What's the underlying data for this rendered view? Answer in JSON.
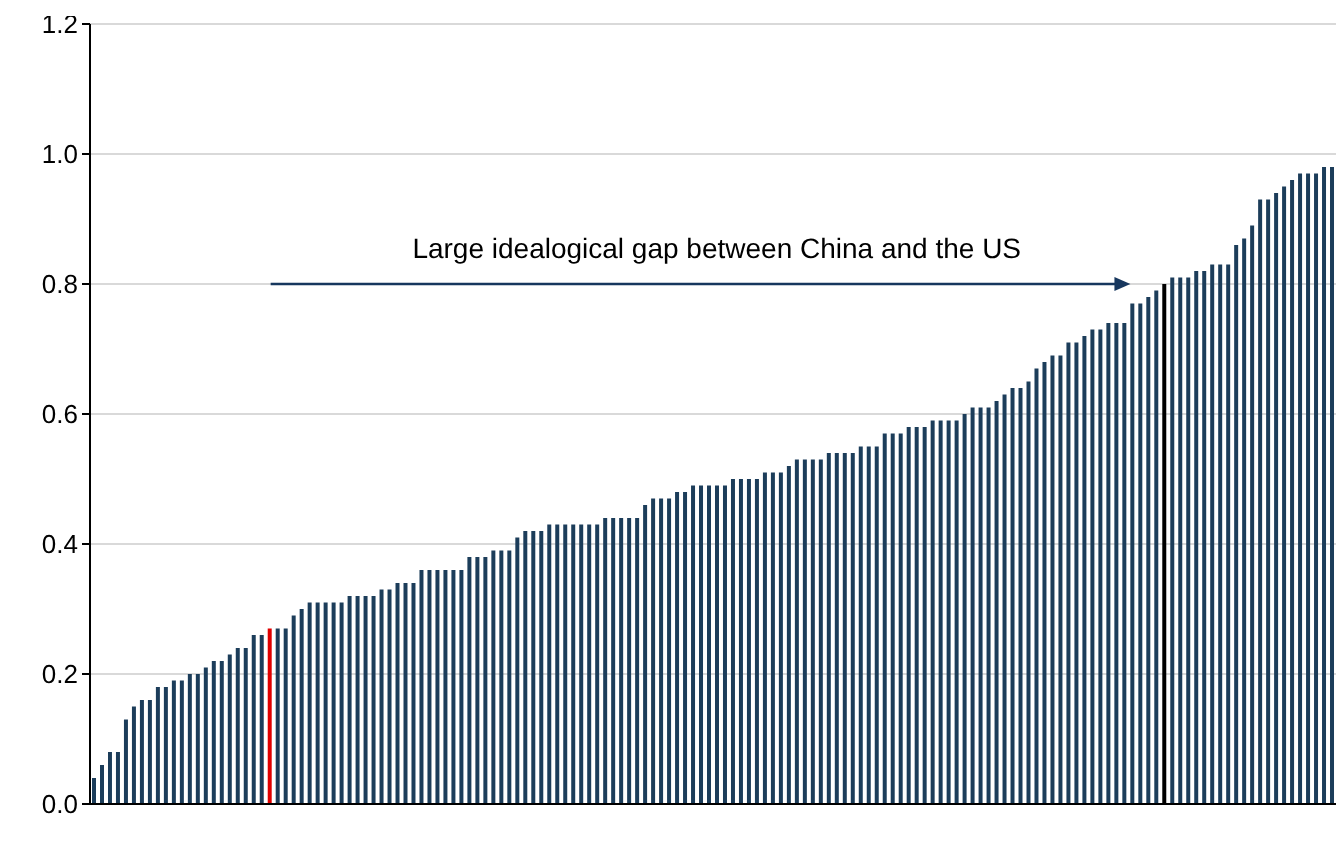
{
  "chart_data": {
    "type": "bar",
    "categories": [
      null,
      null,
      null,
      null,
      null,
      null,
      null,
      null,
      null,
      null,
      null,
      null,
      null,
      null,
      null,
      null,
      null,
      null,
      null,
      null,
      null,
      null,
      null,
      null,
      null,
      null,
      null,
      null,
      null,
      null,
      null,
      null,
      null,
      null,
      null,
      null,
      null,
      null,
      null,
      null,
      null,
      null,
      null,
      null,
      null,
      null,
      null,
      null,
      null,
      null,
      null,
      null,
      null,
      null,
      null,
      null,
      null,
      null,
      null,
      null,
      null,
      null,
      null,
      null,
      null,
      null,
      null,
      null,
      null,
      null,
      null,
      null,
      null,
      null,
      null,
      null,
      null,
      null,
      null,
      null,
      null,
      null,
      null,
      null,
      null,
      null,
      null,
      null,
      null,
      null,
      null,
      null,
      null,
      null,
      null,
      null,
      null,
      null,
      null,
      null,
      null,
      null,
      null,
      null,
      null,
      null,
      null,
      null,
      null,
      null,
      null,
      null,
      null,
      null,
      null,
      null,
      null,
      null,
      null,
      null,
      null,
      null,
      null,
      null,
      null,
      null,
      null,
      null,
      null,
      null,
      null,
      null,
      null,
      null,
      null,
      null,
      null,
      null,
      null,
      null,
      null,
      null,
      null,
      null,
      null,
      null,
      null,
      null,
      null,
      null,
      null,
      null,
      null,
      null,
      null,
      null
    ],
    "values": [
      0.04,
      0.06,
      0.08,
      0.08,
      0.13,
      0.15,
      0.16,
      0.16,
      0.18,
      0.18,
      0.19,
      0.19,
      0.2,
      0.2,
      0.21,
      0.22,
      0.22,
      0.23,
      0.24,
      0.24,
      0.26,
      0.26,
      0.27,
      0.27,
      0.27,
      0.29,
      0.3,
      0.31,
      0.31,
      0.31,
      0.31,
      0.31,
      0.32,
      0.32,
      0.32,
      0.32,
      0.33,
      0.33,
      0.34,
      0.34,
      0.34,
      0.36,
      0.36,
      0.36,
      0.36,
      0.36,
      0.36,
      0.38,
      0.38,
      0.38,
      0.39,
      0.39,
      0.39,
      0.41,
      0.42,
      0.42,
      0.42,
      0.43,
      0.43,
      0.43,
      0.43,
      0.43,
      0.43,
      0.43,
      0.44,
      0.44,
      0.44,
      0.44,
      0.44,
      0.46,
      0.47,
      0.47,
      0.47,
      0.48,
      0.48,
      0.49,
      0.49,
      0.49,
      0.49,
      0.49,
      0.5,
      0.5,
      0.5,
      0.5,
      0.51,
      0.51,
      0.51,
      0.52,
      0.53,
      0.53,
      0.53,
      0.53,
      0.54,
      0.54,
      0.54,
      0.54,
      0.55,
      0.55,
      0.55,
      0.57,
      0.57,
      0.57,
      0.58,
      0.58,
      0.58,
      0.59,
      0.59,
      0.59,
      0.59,
      0.6,
      0.61,
      0.61,
      0.61,
      0.62,
      0.63,
      0.64,
      0.64,
      0.65,
      0.67,
      0.68,
      0.69,
      0.69,
      0.71,
      0.71,
      0.72,
      0.73,
      0.73,
      0.74,
      0.74,
      0.74,
      0.77,
      0.77,
      0.78,
      0.79,
      0.8,
      0.81,
      0.81,
      0.81,
      0.82,
      0.82,
      0.83,
      0.83,
      0.83,
      0.86,
      0.87,
      0.89,
      0.93,
      0.93,
      0.94,
      0.95,
      0.96,
      0.97,
      0.97,
      0.97,
      0.98,
      0.98
    ],
    "colors": [
      "#1c3d5a",
      "#1c3d5a",
      "#1c3d5a",
      "#1c3d5a",
      "#1c3d5a",
      "#1c3d5a",
      "#1c3d5a",
      "#1c3d5a",
      "#1c3d5a",
      "#1c3d5a",
      "#1c3d5a",
      "#1c3d5a",
      "#1c3d5a",
      "#1c3d5a",
      "#1c3d5a",
      "#1c3d5a",
      "#1c3d5a",
      "#1c3d5a",
      "#1c3d5a",
      "#1c3d5a",
      "#1c3d5a",
      "#1c3d5a",
      "#e00000",
      "#1c3d5a",
      "#1c3d5a",
      "#1c3d5a",
      "#1c3d5a",
      "#1c3d5a",
      "#1c3d5a",
      "#1c3d5a",
      "#1c3d5a",
      "#1c3d5a",
      "#1c3d5a",
      "#1c3d5a",
      "#1c3d5a",
      "#1c3d5a",
      "#1c3d5a",
      "#1c3d5a",
      "#1c3d5a",
      "#1c3d5a",
      "#1c3d5a",
      "#1c3d5a",
      "#1c3d5a",
      "#1c3d5a",
      "#1c3d5a",
      "#1c3d5a",
      "#1c3d5a",
      "#1c3d5a",
      "#1c3d5a",
      "#1c3d5a",
      "#1c3d5a",
      "#1c3d5a",
      "#1c3d5a",
      "#1c3d5a",
      "#1c3d5a",
      "#1c3d5a",
      "#1c3d5a",
      "#1c3d5a",
      "#1c3d5a",
      "#1c3d5a",
      "#1c3d5a",
      "#1c3d5a",
      "#1c3d5a",
      "#1c3d5a",
      "#1c3d5a",
      "#1c3d5a",
      "#1c3d5a",
      "#1c3d5a",
      "#1c3d5a",
      "#1c3d5a",
      "#1c3d5a",
      "#1c3d5a",
      "#1c3d5a",
      "#1c3d5a",
      "#1c3d5a",
      "#1c3d5a",
      "#1c3d5a",
      "#1c3d5a",
      "#1c3d5a",
      "#1c3d5a",
      "#1c3d5a",
      "#1c3d5a",
      "#1c3d5a",
      "#1c3d5a",
      "#1c3d5a",
      "#1c3d5a",
      "#1c3d5a",
      "#1c3d5a",
      "#1c3d5a",
      "#1c3d5a",
      "#1c3d5a",
      "#1c3d5a",
      "#1c3d5a",
      "#1c3d5a",
      "#1c3d5a",
      "#1c3d5a",
      "#1c3d5a",
      "#1c3d5a",
      "#1c3d5a",
      "#1c3d5a",
      "#1c3d5a",
      "#1c3d5a",
      "#1c3d5a",
      "#1c3d5a",
      "#1c3d5a",
      "#1c3d5a",
      "#1c3d5a",
      "#1c3d5a",
      "#1c3d5a",
      "#1c3d5a",
      "#1c3d5a",
      "#1c3d5a",
      "#1c3d5a",
      "#1c3d5a",
      "#1c3d5a",
      "#1c3d5a",
      "#1c3d5a",
      "#1c3d5a",
      "#1c3d5a",
      "#1c3d5a",
      "#1c3d5a",
      "#1c3d5a",
      "#1c3d5a",
      "#1c3d5a",
      "#1c3d5a",
      "#1c3d5a",
      "#1c3d5a",
      "#1c3d5a",
      "#1c3d5a",
      "#1c3d5a",
      "#1c3d5a",
      "#1c3d5a",
      "#1c3d5a",
      "#1c3d5a",
      "#000000",
      "#1c3d5a",
      "#1c3d5a",
      "#1c3d5a",
      "#1c3d5a",
      "#1c3d5a",
      "#1c3d5a",
      "#1c3d5a",
      "#1c3d5a",
      "#1c3d5a",
      "#1c3d5a",
      "#1c3d5a",
      "#1c3d5a",
      "#1c3d5a",
      "#1c3d5a",
      "#1c3d5a",
      "#1c3d5a",
      "#1c3d5a",
      "#1c3d5a",
      "#1c3d5a",
      "#1c3d5a",
      "#1c3d5a"
    ],
    "annotations": [
      "Large idealogical gap between China and the US"
    ],
    "ylim": [
      0,
      1.2
    ],
    "yticks": [
      {
        "value": 0,
        "label": "0.0"
      },
      {
        "value": 0.2,
        "label": "0.2"
      },
      {
        "value": 0.4,
        "label": "0.4"
      },
      {
        "value": 0.6,
        "label": "0.6"
      },
      {
        "value": 0.8,
        "label": "0.8"
      },
      {
        "value": 1,
        "label": "1.0"
      },
      {
        "value": 1.2,
        "label": "1.2"
      }
    ],
    "grid": "y"
  }
}
